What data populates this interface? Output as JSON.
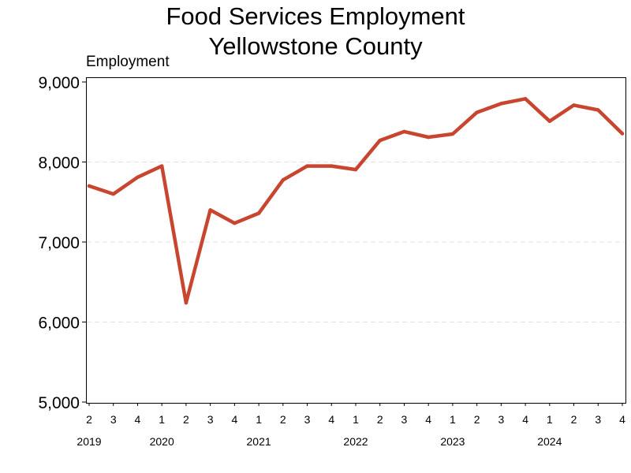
{
  "chart_data": {
    "type": "line",
    "title": [
      "Food Services Employment",
      "Yellowstone County"
    ],
    "ylabel": "Employment",
    "xlabel": "",
    "ylim": [
      5000,
      9000
    ],
    "yticks": [
      5000,
      6000,
      7000,
      8000,
      9000
    ],
    "ytick_labels": [
      "5,000",
      "6,000",
      "7,000",
      "8,000",
      "9,000"
    ],
    "grid": "horizontal-dashed",
    "x_quarters": [
      "2",
      "3",
      "4",
      "1",
      "2",
      "3",
      "4",
      "1",
      "2",
      "3",
      "4",
      "1",
      "2",
      "3",
      "4",
      "1",
      "2",
      "3",
      "4",
      "1",
      "2",
      "3",
      "4"
    ],
    "x_years": [
      {
        "label": "2019",
        "index": 0
      },
      {
        "label": "2020",
        "index": 3
      },
      {
        "label": "2021",
        "index": 7
      },
      {
        "label": "2022",
        "index": 11
      },
      {
        "label": "2023",
        "index": 15
      },
      {
        "label": "2024",
        "index": 19
      }
    ],
    "series": [
      {
        "color": "#c8452f",
        "values": [
          7700,
          7600,
          7810,
          7950,
          6240,
          7400,
          7235,
          7360,
          7775,
          7950,
          7950,
          7905,
          8270,
          8380,
          8310,
          8350,
          8620,
          8730,
          8790,
          8510,
          8710,
          8650,
          8355
        ]
      }
    ]
  }
}
